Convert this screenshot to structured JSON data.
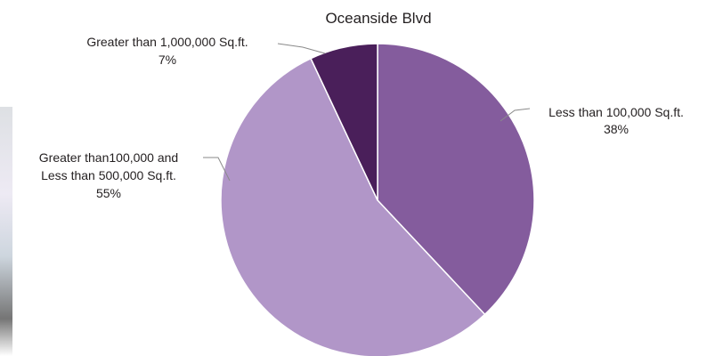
{
  "chart_data": {
    "type": "pie",
    "title": "Oceanside Blvd",
    "slices": [
      {
        "label_lines": [
          "Less than 100,000 Sq.ft."
        ],
        "value_label": "38%",
        "value": 38,
        "color": "#845c9d"
      },
      {
        "label_lines": [
          "Greater than100,000 and",
          "Less than 500,000 Sq.ft."
        ],
        "value_label": "55%",
        "value": 55,
        "color": "#b196c8"
      },
      {
        "label_lines": [
          "Greater than 1,000,000 Sq.ft."
        ],
        "value_label": "7%",
        "value": 7,
        "color": "#4a1f5a"
      }
    ],
    "start_angle_deg": 0,
    "direction": "clockwise",
    "legend": "none"
  }
}
